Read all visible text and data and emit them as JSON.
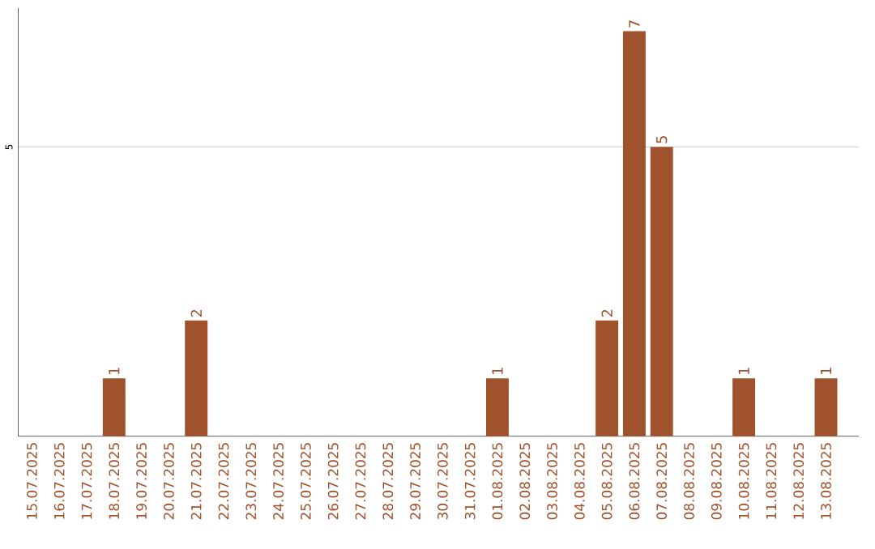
{
  "chart_data": {
    "type": "bar",
    "categories": [
      "15.07.2025",
      "16.07.2025",
      "17.07.2025",
      "18.07.2025",
      "19.07.2025",
      "20.07.2025",
      "21.07.2025",
      "22.07.2025",
      "23.07.2025",
      "24.07.2025",
      "25.07.2025",
      "26.07.2025",
      "27.07.2025",
      "28.07.2025",
      "29.07.2025",
      "30.07.2025",
      "31.07.2025",
      "01.08.2025",
      "02.08.2025",
      "03.08.2025",
      "04.08.2025",
      "05.08.2025",
      "06.08.2025",
      "07.08.2025",
      "08.08.2025",
      "09.08.2025",
      "10.08.2025",
      "11.08.2025",
      "12.08.2025",
      "13.08.2025"
    ],
    "values": [
      0,
      0,
      0,
      1,
      0,
      0,
      2,
      0,
      0,
      0,
      0,
      0,
      0,
      0,
      0,
      0,
      0,
      1,
      0,
      0,
      0,
      2,
      7,
      5,
      0,
      0,
      1,
      0,
      0,
      1
    ],
    "value_labels": [
      null,
      null,
      null,
      "1",
      null,
      null,
      "2",
      null,
      null,
      null,
      null,
      null,
      null,
      null,
      null,
      null,
      null,
      "1",
      null,
      null,
      null,
      "2",
      "7",
      "5",
      null,
      null,
      "1",
      null,
      null,
      "1"
    ],
    "color": "#a0522d",
    "ylim": [
      0,
      7.4
    ],
    "yticks": [
      5
    ],
    "grid": "y"
  }
}
